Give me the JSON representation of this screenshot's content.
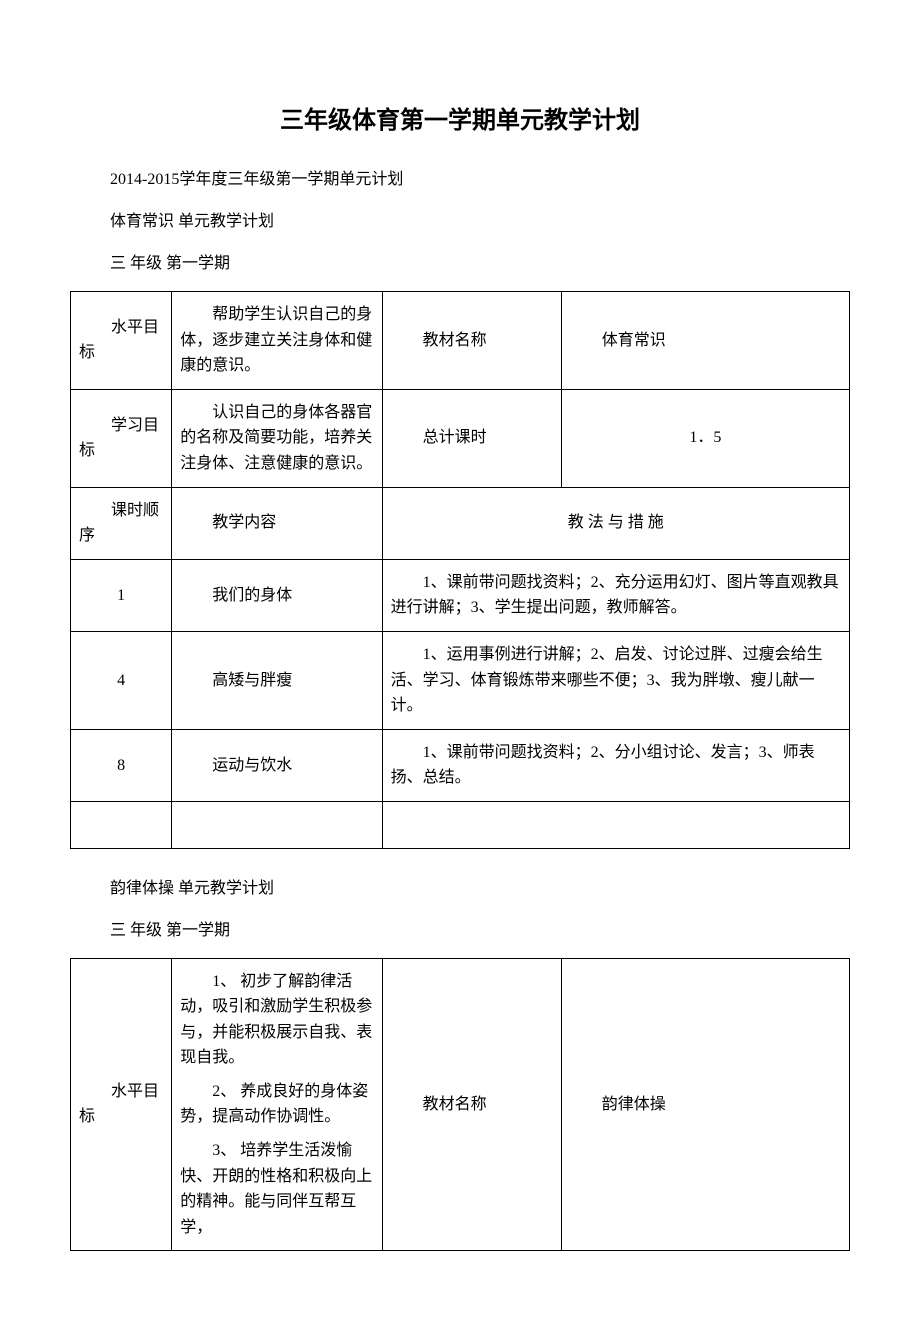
{
  "title": "三年级体育第一学期单元教学计划",
  "subtitle1": "2014-2015学年度三年级第一学期单元计划",
  "subtitle2": "体育常识 单元教学计划",
  "subtitle3": "三 年级 第一学期",
  "subtitle4": "韵律体操 单元教学计划",
  "subtitle5": "三 年级 第一学期",
  "table1": {
    "r1c1": "水平目标",
    "r1c2": "帮助学生认识自己的身体，逐步建立关注身体和健康的意识。",
    "r1c3": "教材名称",
    "r1c4": "体育常识",
    "r2c1": "学习目标",
    "r2c2": "认识自己的身体各器官的名称及简要功能，培养关注身体、注意健康的意识。",
    "r2c3": "总计课时",
    "r2c4": "1．5",
    "r3c1": "课时顺序",
    "r3c2": "教学内容",
    "r3c3": "教 法 与 措 施",
    "r4c1": "1",
    "r4c2": "我们的身体",
    "r4c3": "1、课前带问题找资料；2、充分运用幻灯、图片等直观教具进行讲解；3、学生提出问题，教师解答。",
    "r5c1": "4",
    "r5c2": "高矮与胖瘦",
    "r5c3": "1、运用事例进行讲解；2、启发、讨论过胖、过瘦会给生活、学习、体育锻炼带来哪些不便；3、我为胖墩、瘦儿献一计。",
    "r6c1": "8",
    "r6c2": "运动与饮水",
    "r6c3": "1、课前带问题找资料；2、分小组讨论、发言；3、师表扬、总结。"
  },
  "table2": {
    "r1c1": "水平目标",
    "r1c2p1": "1、 初步了解韵律活动，吸引和激励学生积极参与，并能积极展示自我、表现自我。",
    "r1c2p2": "2、 养成良好的身体姿势，提高动作协调性。",
    "r1c2p3": "3、 培养学生活泼愉快、开朗的性格和积极向上的精神。能与同伴互帮互学，",
    "r1c3": "教材名称",
    "r1c4": "韵律体操"
  },
  "colors": {
    "text": "#000000",
    "border": "#000000",
    "background": "#ffffff",
    "watermark": "#e8e8e8"
  }
}
